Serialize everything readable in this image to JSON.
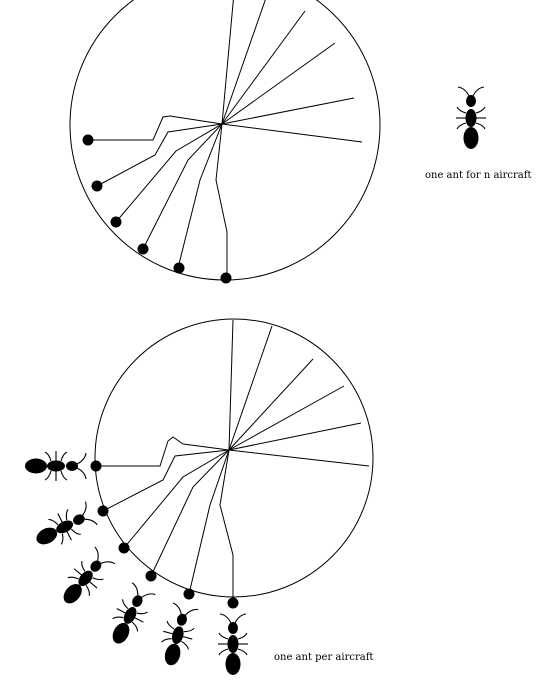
{
  "top_panel": {
    "caption": "one ant for n aircraft",
    "ant_count": 1
  },
  "bottom_panel": {
    "caption": "one ant per aircraft",
    "ant_count": 6
  },
  "colors": {
    "ink": "#000000",
    "paper": "#ffffff"
  }
}
